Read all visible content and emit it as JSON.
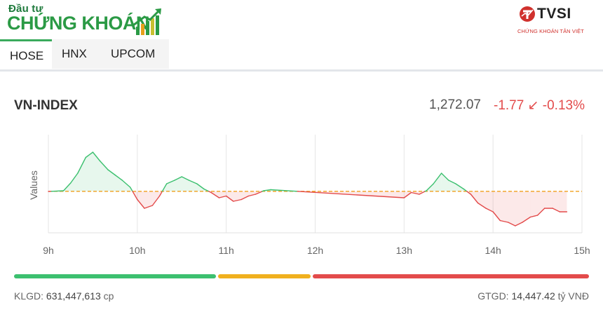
{
  "header": {
    "logo_top": "Đầu tư",
    "logo_main": "CHỨNG KHOÁN",
    "broker_name": "TVSI",
    "broker_subtitle": "CHỨNG KHOÁN TÂN VIỆT"
  },
  "tabs": [
    {
      "label": "HOSE",
      "active": true
    },
    {
      "label": "HNX",
      "active": false
    },
    {
      "label": "UPCOM",
      "active": false
    }
  ],
  "index": {
    "name": "VN-INDEX",
    "value": "1,272.07",
    "change": "-1.77 ↙ -0.13%"
  },
  "chart_data": {
    "type": "line",
    "ylabel": "Values",
    "xticks": [
      "9h",
      "10h",
      "11h",
      "12h",
      "13h",
      "14h",
      "15h"
    ],
    "reference": 1273.84,
    "colors": {
      "up": "#3cc06f",
      "down": "#e34b4b",
      "reference": "#f0a01e"
    },
    "x": [
      9.0,
      9.17,
      9.25,
      9.33,
      9.42,
      9.5,
      9.58,
      9.67,
      9.75,
      9.83,
      9.92,
      10.0,
      10.08,
      10.17,
      10.25,
      10.33,
      10.42,
      10.5,
      10.58,
      10.67,
      10.75,
      10.83,
      10.92,
      11.0,
      11.08,
      11.17,
      11.25,
      11.33,
      11.42,
      11.5,
      13.0,
      13.08,
      13.17,
      13.25,
      13.33,
      13.42,
      13.5,
      13.58,
      13.67,
      13.75,
      13.83,
      13.92,
      14.0,
      14.08,
      14.17,
      14.25,
      14.33,
      14.42,
      14.5,
      14.58,
      14.67,
      14.75,
      14.83
    ],
    "y": [
      1273.8,
      1274.0,
      1276.2,
      1279.0,
      1283.5,
      1285.0,
      1282.5,
      1280.0,
      1278.5,
      1277.0,
      1275.0,
      1271.5,
      1269.0,
      1269.8,
      1272.5,
      1276.0,
      1277.0,
      1278.0,
      1277.0,
      1276.0,
      1274.5,
      1273.5,
      1272.0,
      1272.5,
      1271.0,
      1271.5,
      1272.5,
      1273.0,
      1274.0,
      1274.3,
      1272.0,
      1273.5,
      1273.0,
      1274.0,
      1276.0,
      1279.0,
      1277.0,
      1276.0,
      1274.5,
      1273.0,
      1270.5,
      1269.0,
      1268.0,
      1265.5,
      1265.0,
      1264.0,
      1265.0,
      1266.5,
      1267.0,
      1269.0,
      1269.0,
      1268.0,
      1268.0
    ],
    "y_range": [
      1262,
      1290
    ]
  },
  "progress": {
    "up_fraction": 0.355,
    "flat_fraction": 0.165,
    "down_fraction": 0.48,
    "up_color": "#3cc06f",
    "flat_color": "#f0b01e",
    "down_color": "#e34b4b"
  },
  "footer": {
    "volume_label": "KLGD:",
    "volume_value": "631,447,613",
    "volume_unit": "cp",
    "value_label": "GTGD:",
    "value_value": "14,447.42",
    "value_unit": "tỷ VNĐ"
  }
}
